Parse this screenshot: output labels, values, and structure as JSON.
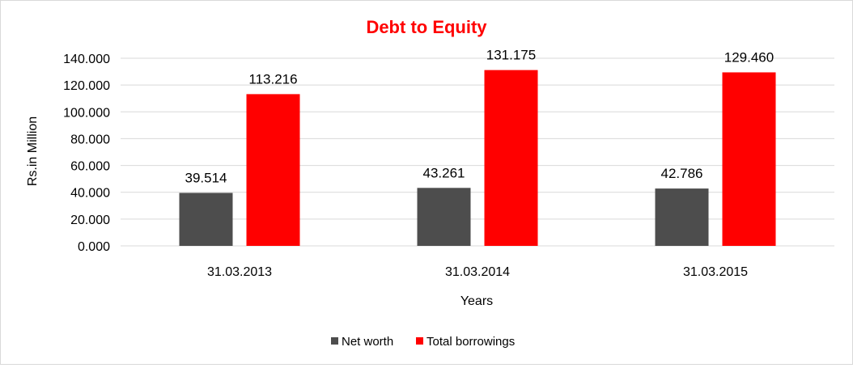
{
  "chart_data": {
    "type": "bar",
    "title": "Debt to Equity",
    "xlabel": "Years",
    "ylabel": "Rs.in Million",
    "categories": [
      "31.03.2013",
      "31.03.2014",
      "31.03.2015"
    ],
    "series": [
      {
        "name": "Net worth",
        "values": [
          39.514,
          43.261,
          42.786
        ],
        "labels": [
          "39.514",
          "43.261",
          "42.786"
        ],
        "color": "#4d4d4d"
      },
      {
        "name": "Total borrowings",
        "values": [
          113.216,
          131.175,
          129.46
        ],
        "labels": [
          "113.216",
          "131.175",
          "129.460"
        ],
        "color": "#ff0000"
      }
    ],
    "ylim": [
      0,
      140
    ],
    "yticks": [
      0,
      20,
      40,
      60,
      80,
      100,
      120,
      140
    ],
    "ytick_labels": [
      "0.000",
      "20.000",
      "40.000",
      "60.000",
      "80.000",
      "100.000",
      "120.000",
      "140.000"
    ],
    "grid": true,
    "legend": "bottom",
    "colors": {
      "title": "#ff0000",
      "grid": "#d9d9d9",
      "text": "#000000"
    }
  }
}
